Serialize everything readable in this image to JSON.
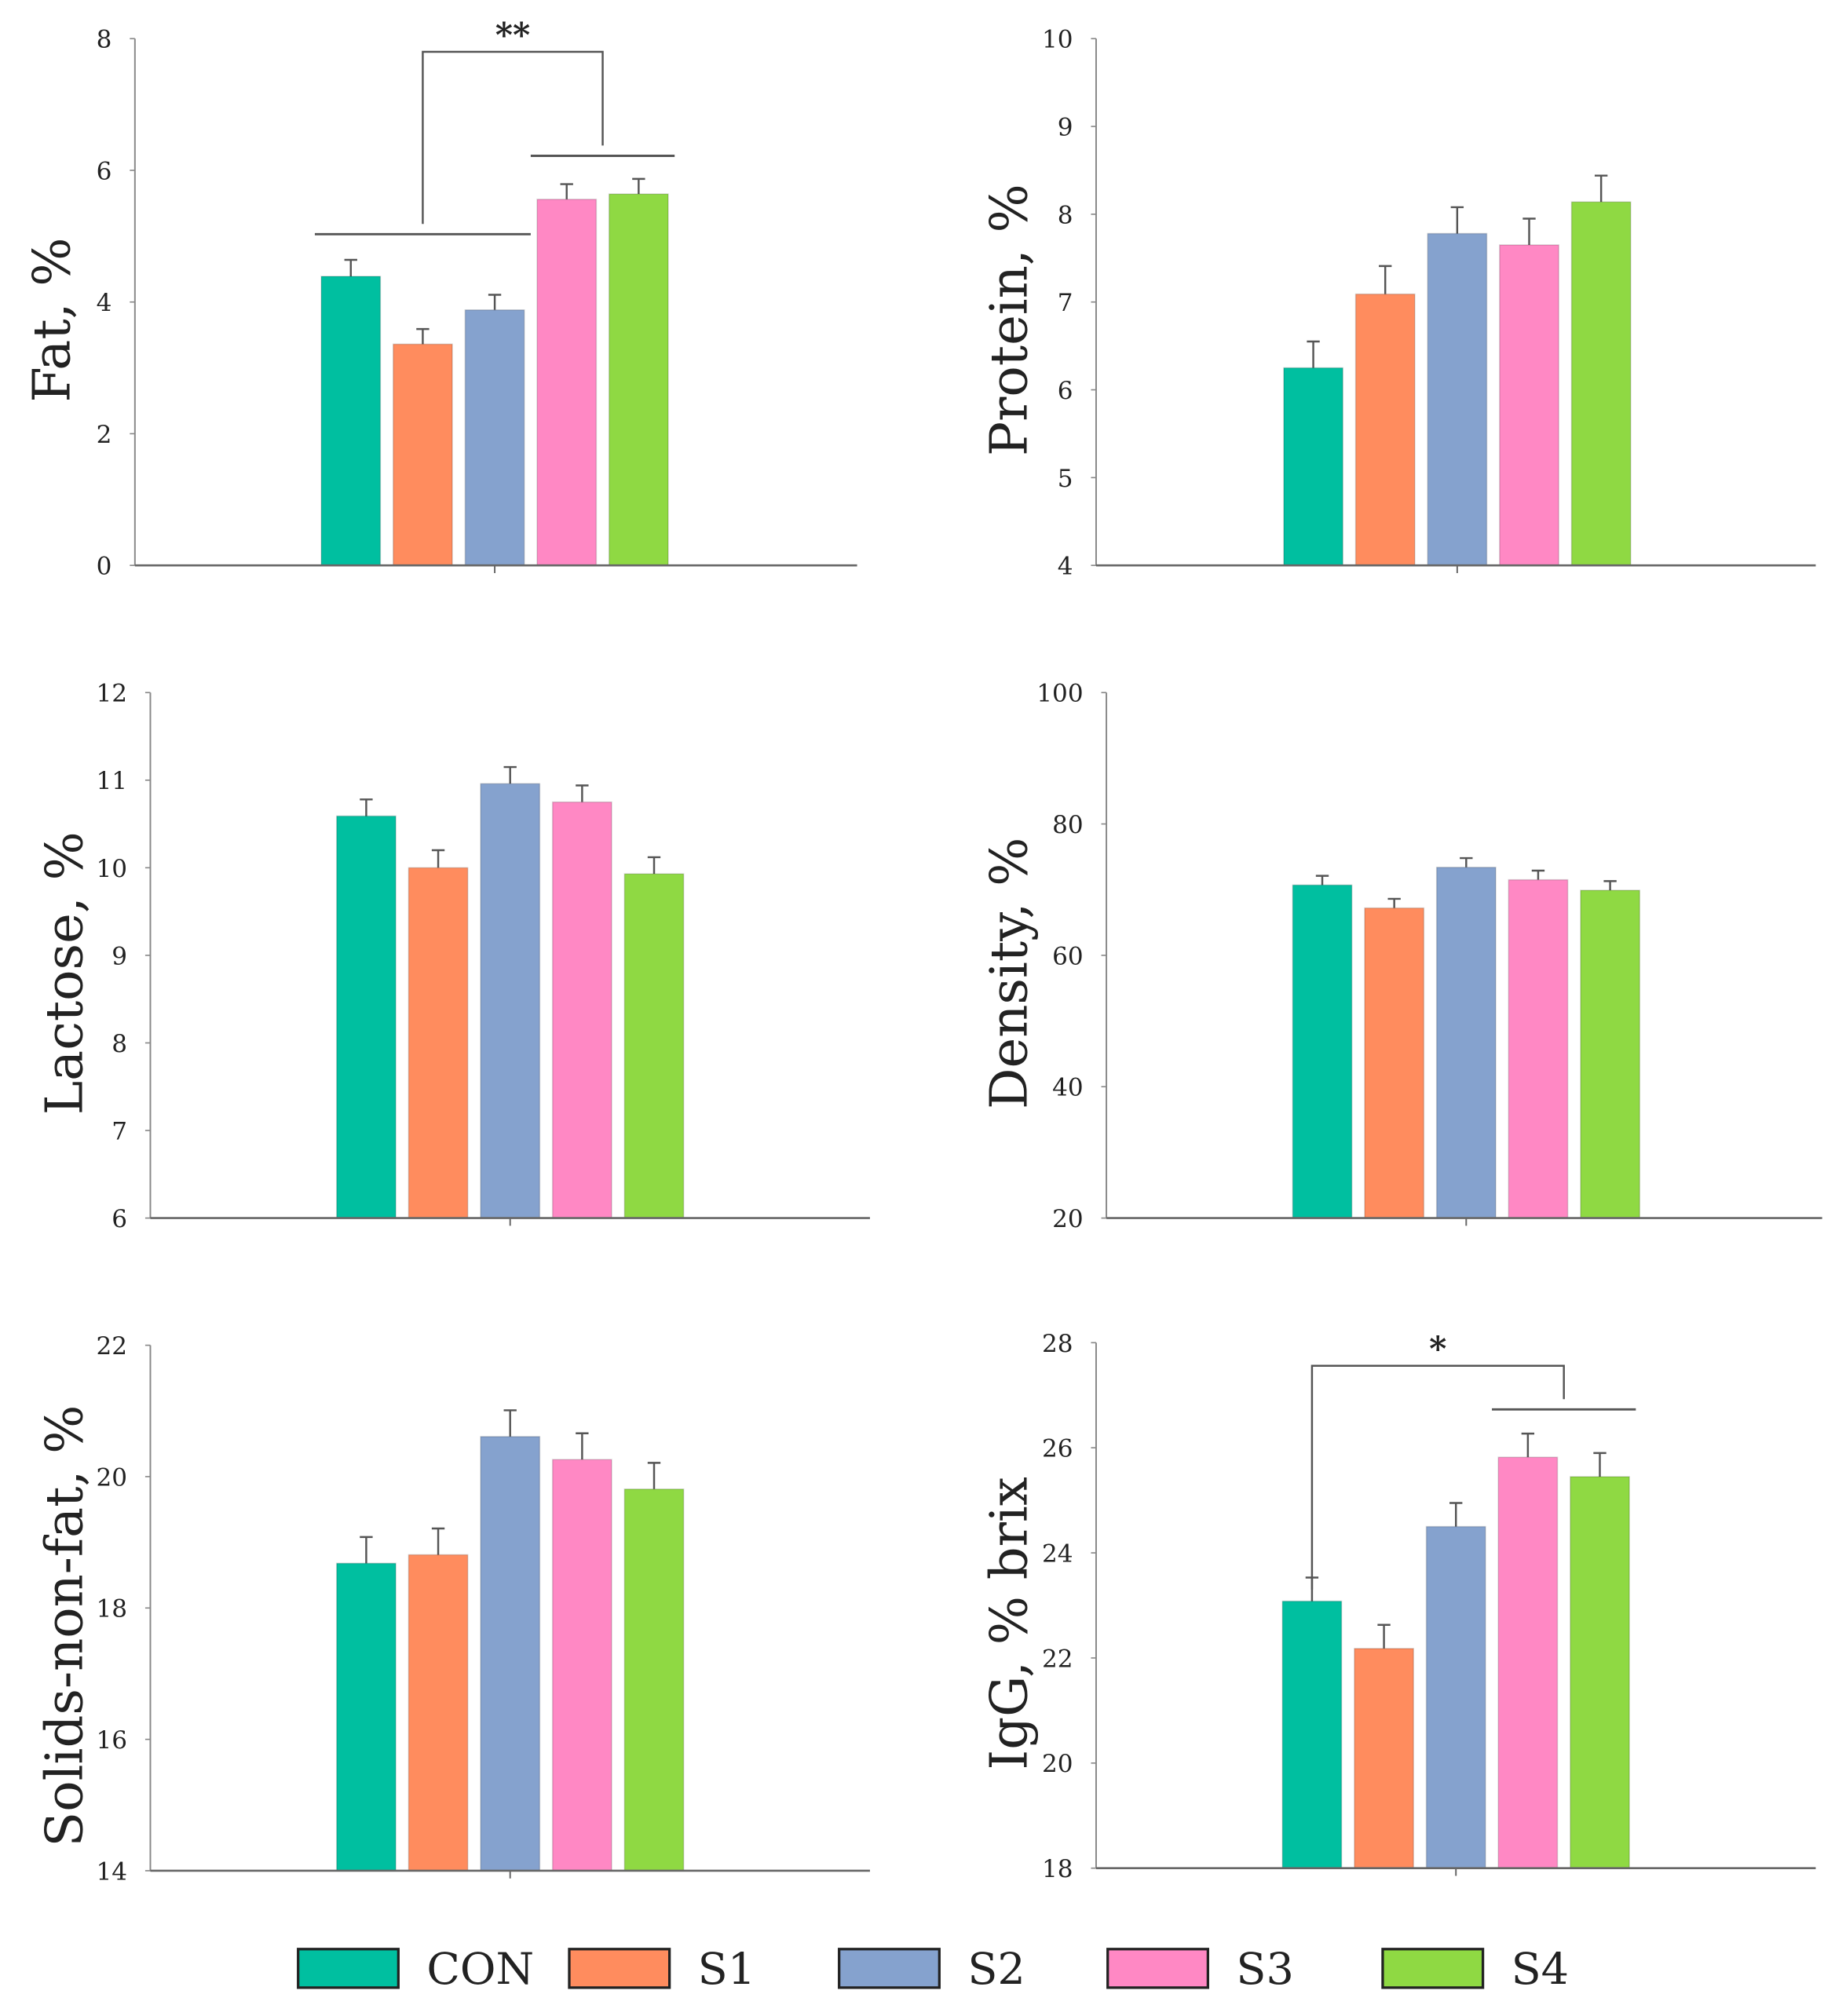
{
  "legend": {
    "items": [
      {
        "label": "CON",
        "color": "#00BFA0"
      },
      {
        "label": "S1",
        "color": "#FF8C5E"
      },
      {
        "label": "S2",
        "color": "#85A2CE"
      },
      {
        "label": "S3",
        "color": "#FF88C4"
      },
      {
        "label": "S4",
        "color": "#8FD943"
      }
    ]
  },
  "chart_data": [
    {
      "type": "bar",
      "ylabel": "Fat, %",
      "ylim": [
        0,
        8
      ],
      "yticks": [
        "0",
        "2",
        "4",
        "6",
        "8"
      ],
      "categories": [
        "CON",
        "S1",
        "S2",
        "S3",
        "S4"
      ],
      "values": [
        4.39,
        3.36,
        3.88,
        5.56,
        5.64
      ],
      "errors": [
        0.25,
        0.23,
        0.23,
        0.23,
        0.23
      ],
      "significance": {
        "label": "**",
        "left_bars": [
          0,
          1,
          2
        ],
        "left_y": 5.03,
        "right_bars": [
          3,
          4
        ],
        "right_y": 6.22,
        "top_y": 7.8
      }
    },
    {
      "type": "bar",
      "ylabel": "Protein, %",
      "ylim": [
        4,
        10
      ],
      "yticks": [
        "4",
        "5",
        "6",
        "7",
        "8",
        "9",
        "10"
      ],
      "categories": [
        "CON",
        "S1",
        "S2",
        "S3",
        "S4"
      ],
      "values": [
        6.25,
        7.09,
        7.78,
        7.65,
        8.14
      ],
      "errors": [
        0.3,
        0.32,
        0.3,
        0.3,
        0.3
      ]
    },
    {
      "type": "bar",
      "ylabel": "Lactose, %",
      "ylim": [
        6,
        12
      ],
      "yticks": [
        "6",
        "7",
        "8",
        "9",
        "10",
        "11",
        "12"
      ],
      "categories": [
        "CON",
        "S1",
        "S2",
        "S3",
        "S4"
      ],
      "values": [
        10.59,
        10.0,
        10.96,
        10.75,
        9.93
      ],
      "errors": [
        0.19,
        0.2,
        0.19,
        0.19,
        0.19
      ]
    },
    {
      "type": "bar",
      "ylabel": "Density, %",
      "ylim": [
        20,
        100
      ],
      "yticks": [
        "20",
        "40",
        "60",
        "80",
        "100"
      ],
      "categories": [
        "CON",
        "S1",
        "S2",
        "S3",
        "S4"
      ],
      "values": [
        70.7,
        67.2,
        73.4,
        71.5,
        69.9
      ],
      "errors": [
        1.4,
        1.4,
        1.4,
        1.4,
        1.4
      ]
    },
    {
      "type": "bar",
      "ylabel": "Solids-non-fat, %",
      "ylim": [
        14,
        22
      ],
      "yticks": [
        "14",
        "16",
        "18",
        "20",
        "22"
      ],
      "categories": [
        "CON",
        "S1",
        "S2",
        "S3",
        "S4"
      ],
      "values": [
        18.68,
        18.81,
        20.61,
        20.26,
        19.81
      ],
      "errors": [
        0.4,
        0.4,
        0.4,
        0.4,
        0.4
      ]
    },
    {
      "type": "bar",
      "ylabel": "IgG, % brix",
      "ylim": [
        18,
        28
      ],
      "yticks": [
        "18",
        "20",
        "22",
        "24",
        "26",
        "28"
      ],
      "categories": [
        "CON",
        "S1",
        "S2",
        "S3",
        "S4"
      ],
      "values": [
        23.08,
        22.18,
        24.5,
        25.82,
        25.45
      ],
      "errors": [
        0.45,
        0.45,
        0.45,
        0.45,
        0.45
      ],
      "significance": {
        "label": "*",
        "left_bars": [
          0
        ],
        "left_y": 23.3,
        "right_bars": [
          3,
          4
        ],
        "right_y": 26.73,
        "top_y": 27.56
      }
    }
  ]
}
